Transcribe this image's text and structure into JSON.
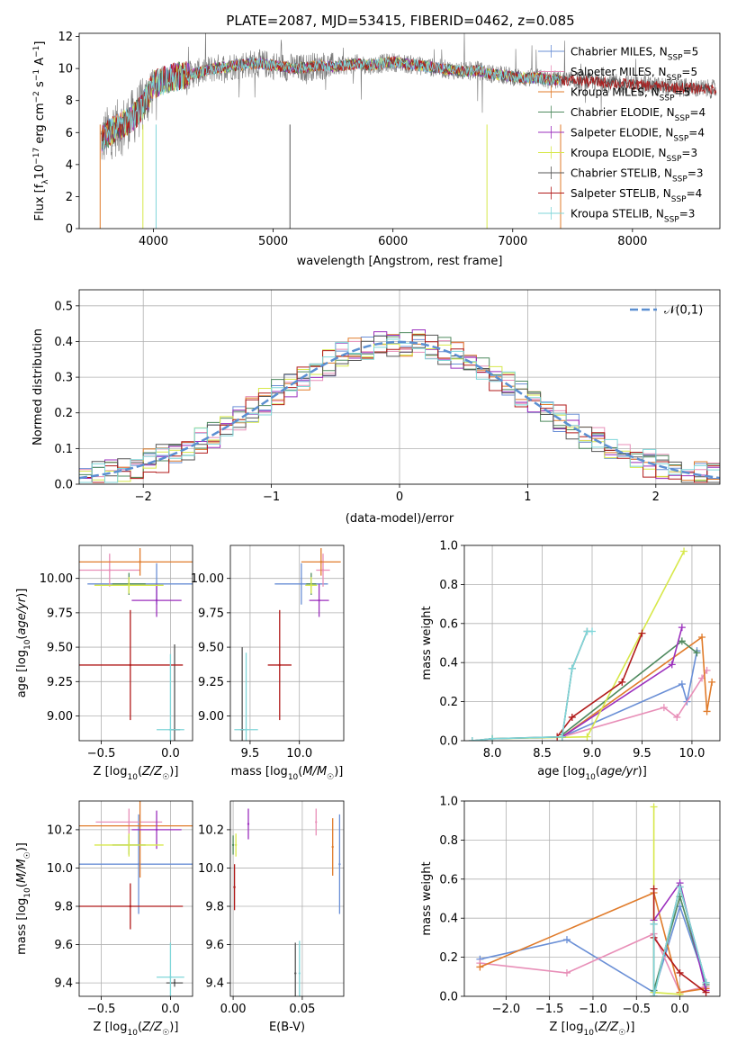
{
  "chart_data": [
    {
      "id": "spectrum",
      "type": "line",
      "title": "PLATE=2087, MJD=53415, FIBERID=0462, z=0.085",
      "xlabel": "wavelength [Angstrom, rest frame]",
      "ylabel": "Flux [f_λ 10^-17 erg cm^-2 s^-1 A^-1]",
      "xlim": [
        3380,
        8730
      ],
      "ylim": [
        0,
        12.2
      ],
      "xticks": [
        4000,
        5000,
        6000,
        7000,
        8000
      ],
      "yticks": [
        0,
        2,
        4,
        6,
        8,
        10,
        12
      ],
      "grid": false,
      "legend_position": "upper right",
      "series": [
        {
          "name": "Chabrier MILES, N_SSP=5",
          "color": "#6a8fd6"
        },
        {
          "name": "Salpeter MILES, N_SSP=5",
          "color": "#e88fb8"
        },
        {
          "name": "Kroupa MILES, N_SSP=5",
          "color": "#e07b2a"
        },
        {
          "name": "Chabrier ELODIE, N_SSP=4",
          "color": "#4f8a5f"
        },
        {
          "name": "Salpeter ELODIE, N_SSP=4",
          "color": "#9b2fbd"
        },
        {
          "name": "Kroupa ELODIE, N_SSP=3",
          "color": "#d7e84a"
        },
        {
          "name": "Chabrier STELIB, N_SSP=3",
          "color": "#555555"
        },
        {
          "name": "Salpeter STELIB, N_SSP=4",
          "color": "#b11a1a"
        },
        {
          "name": "Kroupa STELIB, N_SSP=3",
          "color": "#7fd6d9"
        }
      ],
      "model_continuum": {
        "wavelength": [
          3550,
          3600,
          3650,
          3700,
          3750,
          3800,
          3850,
          3900,
          3950,
          4000,
          4100,
          4200,
          4300,
          4400,
          4500,
          4600,
          4700,
          4800,
          4900,
          5000,
          5100,
          5200,
          5300,
          5400,
          5500,
          5600,
          5700,
          5800,
          5900,
          6000,
          6100,
          6200,
          6300,
          6400,
          6500,
          6600,
          6700,
          6800,
          6900,
          7000,
          7100,
          7200,
          7300,
          7400
        ],
        "flux": [
          5.3,
          5.8,
          6.1,
          6.3,
          6.5,
          6.8,
          7.1,
          7.6,
          8.2,
          9.0,
          9.3,
          9.5,
          9.6,
          9.8,
          10.0,
          10.1,
          10.2,
          10.3,
          10.3,
          10.2,
          10.1,
          10.0,
          10.1,
          10.2,
          10.1,
          10.2,
          10.3,
          10.2,
          10.3,
          10.4,
          10.3,
          10.2,
          10.1,
          10.0,
          9.9,
          9.8,
          9.9,
          9.7,
          9.6,
          9.5,
          9.4,
          9.4,
          9.3,
          9.3
        ]
      },
      "model_extension": {
        "wavelength": [
          7400,
          7600,
          7800,
          8000,
          8200,
          8400,
          8700
        ],
        "flux": [
          9.3,
          9.2,
          9.1,
          9.0,
          8.9,
          8.8,
          8.7
        ]
      }
    },
    {
      "id": "residuals",
      "type": "histogram",
      "xlabel": "(data-model)/error",
      "ylabel": "Normed distribution",
      "xlim": [
        -2.5,
        2.5
      ],
      "ylim": [
        0,
        0.545
      ],
      "xticks": [
        -2,
        -1,
        0,
        1,
        2
      ],
      "yticks": [
        0.0,
        0.1,
        0.2,
        0.3,
        0.4,
        0.5
      ],
      "grid": true,
      "bin_width": 0.1,
      "reference_curve": {
        "name": "𝒩(0,1)",
        "color": "#5b8fd1"
      },
      "legend_position": "upper right"
    },
    {
      "id": "age_vs_Z",
      "type": "scatter",
      "xlabel": "Z [log10(Z/Z☉)]",
      "ylabel": "age [log10(age/yr)]",
      "xlim": [
        -0.66,
        0.16
      ],
      "ylim": [
        8.82,
        10.24
      ],
      "xticks": [
        -0.5,
        0.0
      ],
      "yticks": [
        9.0,
        9.25,
        9.5,
        9.75,
        10.0
      ],
      "grid": true,
      "points": [
        {
          "series": 0,
          "x": -0.1,
          "xerr": 0.5,
          "y": 9.96,
          "yerr": 0.15
        },
        {
          "series": 1,
          "x": -0.44,
          "xerr": 0.22,
          "y": 10.06,
          "yerr": 0.12
        },
        {
          "series": 2,
          "x": -0.22,
          "xerr": 0.44,
          "y": 10.12,
          "yerr": 0.1
        },
        {
          "series": 3,
          "x": -0.3,
          "xerr": 0.12,
          "y": 9.96,
          "yerr": 0.08
        },
        {
          "series": 4,
          "x": -0.1,
          "xerr": 0.18,
          "y": 9.84,
          "yerr": 0.12
        },
        {
          "series": 5,
          "x": -0.3,
          "xerr": 0.25,
          "y": 9.95,
          "yerr": 0.06
        },
        {
          "series": 6,
          "x": 0.03,
          "xerr": 0.04,
          "y": 8.9,
          "yerr": 0.62
        },
        {
          "series": 7,
          "x": -0.29,
          "xerr": 0.38,
          "y": 9.37,
          "yerr": 0.4
        },
        {
          "series": 8,
          "x": 0.0,
          "xerr": 0.1,
          "y": 8.9,
          "yerr": 0.55
        }
      ]
    },
    {
      "id": "age_vs_mass",
      "type": "scatter",
      "xlabel": "mass [log10(M/M☉)]",
      "ylabel": "",
      "xlim": [
        9.3,
        10.45
      ],
      "ylim": [
        8.82,
        10.24
      ],
      "xticks": [
        9.5,
        10.0
      ],
      "yticks": [
        9.0,
        9.25,
        9.5,
        9.75,
        10.0
      ],
      "grid": true,
      "points": [
        {
          "series": 0,
          "x": 10.02,
          "xerr": 0.27,
          "y": 9.96,
          "yerr": 0.15
        },
        {
          "series": 1,
          "x": 10.24,
          "xerr": 0.07,
          "y": 10.06,
          "yerr": 0.12
        },
        {
          "series": 2,
          "x": 10.22,
          "xerr": 0.2,
          "y": 10.12,
          "yerr": 0.1
        },
        {
          "series": 3,
          "x": 10.12,
          "xerr": 0.05,
          "y": 9.96,
          "yerr": 0.08
        },
        {
          "series": 4,
          "x": 10.2,
          "xerr": 0.1,
          "y": 9.84,
          "yerr": 0.12
        },
        {
          "series": 5,
          "x": 10.12,
          "xerr": 0.06,
          "y": 9.95,
          "yerr": 0.06
        },
        {
          "series": 6,
          "x": 9.42,
          "xerr": 0.02,
          "y": 8.9,
          "yerr": 0.6
        },
        {
          "series": 7,
          "x": 9.8,
          "xerr": 0.12,
          "y": 9.37,
          "yerr": 0.4
        },
        {
          "series": 8,
          "x": 9.46,
          "xerr": 0.12,
          "y": 8.9,
          "yerr": 0.56
        }
      ]
    },
    {
      "id": "mass_weight_vs_age",
      "type": "line",
      "xlabel": "age [log10(age/yr)]",
      "ylabel": "mass weight",
      "xlim": [
        7.72,
        10.28
      ],
      "ylim": [
        0,
        1
      ],
      "xticks": [
        8.0,
        8.5,
        9.0,
        9.5,
        10.0
      ],
      "yticks": [
        0.0,
        0.2,
        0.4,
        0.6,
        0.8,
        1.0
      ],
      "grid": true,
      "series": [
        {
          "series": 0,
          "x": [
            8.7,
            9.9,
            9.95,
            10.05
          ],
          "y": [
            0.02,
            0.29,
            0.2,
            0.46
          ]
        },
        {
          "series": 1,
          "x": [
            8.7,
            9.72,
            9.85,
            10.1,
            10.15
          ],
          "y": [
            0.02,
            0.17,
            0.12,
            0.32,
            0.36
          ]
        },
        {
          "series": 2,
          "x": [
            8.7,
            10.1,
            10.15,
            10.2
          ],
          "y": [
            0.02,
            0.53,
            0.15,
            0.3
          ]
        },
        {
          "series": 3,
          "x": [
            8.7,
            9.9,
            10.05
          ],
          "y": [
            0.03,
            0.51,
            0.45
          ]
        },
        {
          "series": 4,
          "x": [
            8.7,
            9.8,
            9.9
          ],
          "y": [
            0.02,
            0.39,
            0.58
          ]
        },
        {
          "series": 5,
          "x": [
            8.0,
            8.95,
            9.92
          ],
          "y": [
            0.01,
            0.02,
            0.97
          ]
        },
        {
          "series": 6,
          "x": [
            7.8,
            8.0,
            8.7,
            8.8,
            8.95
          ],
          "y": [
            0.0,
            0.01,
            0.02,
            0.37,
            0.56
          ]
        },
        {
          "series": 7,
          "x": [
            8.65,
            8.8,
            9.3,
            9.5
          ],
          "y": [
            0.02,
            0.12,
            0.3,
            0.55
          ]
        },
        {
          "series": 8,
          "x": [
            7.8,
            8.0,
            8.7,
            8.8,
            8.95,
            9.0
          ],
          "y": [
            0.0,
            0.01,
            0.02,
            0.37,
            0.56,
            0.56
          ]
        }
      ]
    },
    {
      "id": "mass_vs_Z",
      "type": "scatter",
      "xlabel": "Z [log10(Z/Z☉)]",
      "ylabel": "mass [log10(M/M☉)]",
      "xlim": [
        -0.66,
        0.16
      ],
      "ylim": [
        9.33,
        10.35
      ],
      "xticks": [
        -0.5,
        0.0
      ],
      "yticks": [
        9.4,
        9.6,
        9.8,
        10.0,
        10.2
      ],
      "grid": true,
      "points": [
        {
          "series": 0,
          "x": -0.23,
          "xerr": 0.47,
          "y": 10.02,
          "yerr": 0.26
        },
        {
          "series": 1,
          "x": -0.3,
          "xerr": 0.24,
          "y": 10.24,
          "yerr": 0.07
        },
        {
          "series": 2,
          "x": -0.22,
          "xerr": 0.44,
          "y": 10.22,
          "yerr": 0.27
        },
        {
          "series": 3,
          "x": -0.3,
          "xerr": 0.12,
          "y": 10.12,
          "yerr": 0.05
        },
        {
          "series": 4,
          "x": -0.1,
          "xerr": 0.18,
          "y": 10.2,
          "yerr": 0.1
        },
        {
          "series": 5,
          "x": -0.3,
          "xerr": 0.25,
          "y": 10.12,
          "yerr": 0.06
        },
        {
          "series": 6,
          "x": 0.03,
          "xerr": 0.06,
          "y": 9.4,
          "yerr": 0.02
        },
        {
          "series": 7,
          "x": -0.29,
          "xerr": 0.38,
          "y": 9.8,
          "yerr": 0.12
        },
        {
          "series": 8,
          "x": 0.0,
          "xerr": 0.1,
          "y": 9.43,
          "yerr": 0.18
        }
      ]
    },
    {
      "id": "mass_vs_EBV",
      "type": "scatter",
      "xlabel": "E(B-V)",
      "ylabel": "",
      "xlim": [
        -0.002,
        0.08
      ],
      "ylim": [
        9.33,
        10.35
      ],
      "xticks": [
        0.0,
        0.05
      ],
      "yticks": [
        9.4,
        9.6,
        9.8,
        10.0,
        10.2
      ],
      "grid": true,
      "points": [
        {
          "series": 0,
          "x": 0.077,
          "y": 10.02,
          "yerr": 0.26
        },
        {
          "series": 1,
          "x": 0.06,
          "y": 10.24,
          "yerr": 0.07
        },
        {
          "series": 2,
          "x": 0.072,
          "y": 10.11,
          "yerr": 0.15
        },
        {
          "series": 3,
          "x": 0.0,
          "y": 10.12,
          "yerr": 0.05
        },
        {
          "series": 4,
          "x": 0.011,
          "y": 10.23,
          "yerr": 0.08
        },
        {
          "series": 5,
          "x": 0.002,
          "y": 10.12,
          "yerr": 0.06
        },
        {
          "series": 6,
          "x": 0.045,
          "y": 9.45,
          "yerr": 0.16
        },
        {
          "series": 7,
          "x": 0.001,
          "y": 9.9,
          "yerr": 0.12
        },
        {
          "series": 8,
          "x": 0.048,
          "y": 9.45,
          "yerr": 0.17
        }
      ]
    },
    {
      "id": "mass_weight_vs_Z",
      "type": "line",
      "xlabel": "Z [log10(Z/Z☉)]",
      "ylabel": "mass weight",
      "xlim": [
        -2.48,
        0.46
      ],
      "ylim": [
        0,
        1
      ],
      "xticks": [
        -2.0,
        -1.5,
        -1.0,
        -0.5,
        0.0
      ],
      "yticks": [
        0.0,
        0.2,
        0.4,
        0.6,
        0.8,
        1.0
      ],
      "grid": true,
      "series": [
        {
          "series": 0,
          "x": [
            -2.3,
            -1.3,
            -0.3,
            0.0,
            0.3
          ],
          "y": [
            0.19,
            0.29,
            0.02,
            0.46,
            0.07
          ]
        },
        {
          "series": 1,
          "x": [
            -2.3,
            -1.3,
            -0.3,
            0.0,
            0.3
          ],
          "y": [
            0.17,
            0.12,
            0.32,
            0.02,
            0.05
          ]
        },
        {
          "series": 2,
          "x": [
            -2.3,
            -0.3,
            0.0,
            0.3
          ],
          "y": [
            0.15,
            0.53,
            0.02,
            0.04
          ]
        },
        {
          "series": 3,
          "x": [
            -0.3,
            0.0,
            0.3
          ],
          "y": [
            0.03,
            0.51,
            0.06
          ]
        },
        {
          "series": 4,
          "x": [
            -0.3,
            0.0,
            0.3
          ],
          "y": [
            0.39,
            0.58,
            0.03
          ]
        },
        {
          "series": 5,
          "x": [
            -0.3,
            -0.3,
            0.0
          ],
          "y": [
            0.97,
            0.02,
            0.01
          ]
        },
        {
          "series": 6,
          "x": [
            -0.3,
            -0.3,
            0.0,
            0.3
          ],
          "y": [
            0.37,
            0.0,
            0.56,
            0.07
          ]
        },
        {
          "series": 7,
          "x": [
            -0.3,
            -0.3,
            0.0,
            0.3
          ],
          "y": [
            0.55,
            0.3,
            0.12,
            0.02
          ]
        },
        {
          "series": 8,
          "x": [
            -0.3,
            -0.3,
            0.0,
            0.3
          ],
          "y": [
            0.37,
            0.0,
            0.56,
            0.07
          ]
        }
      ]
    }
  ]
}
